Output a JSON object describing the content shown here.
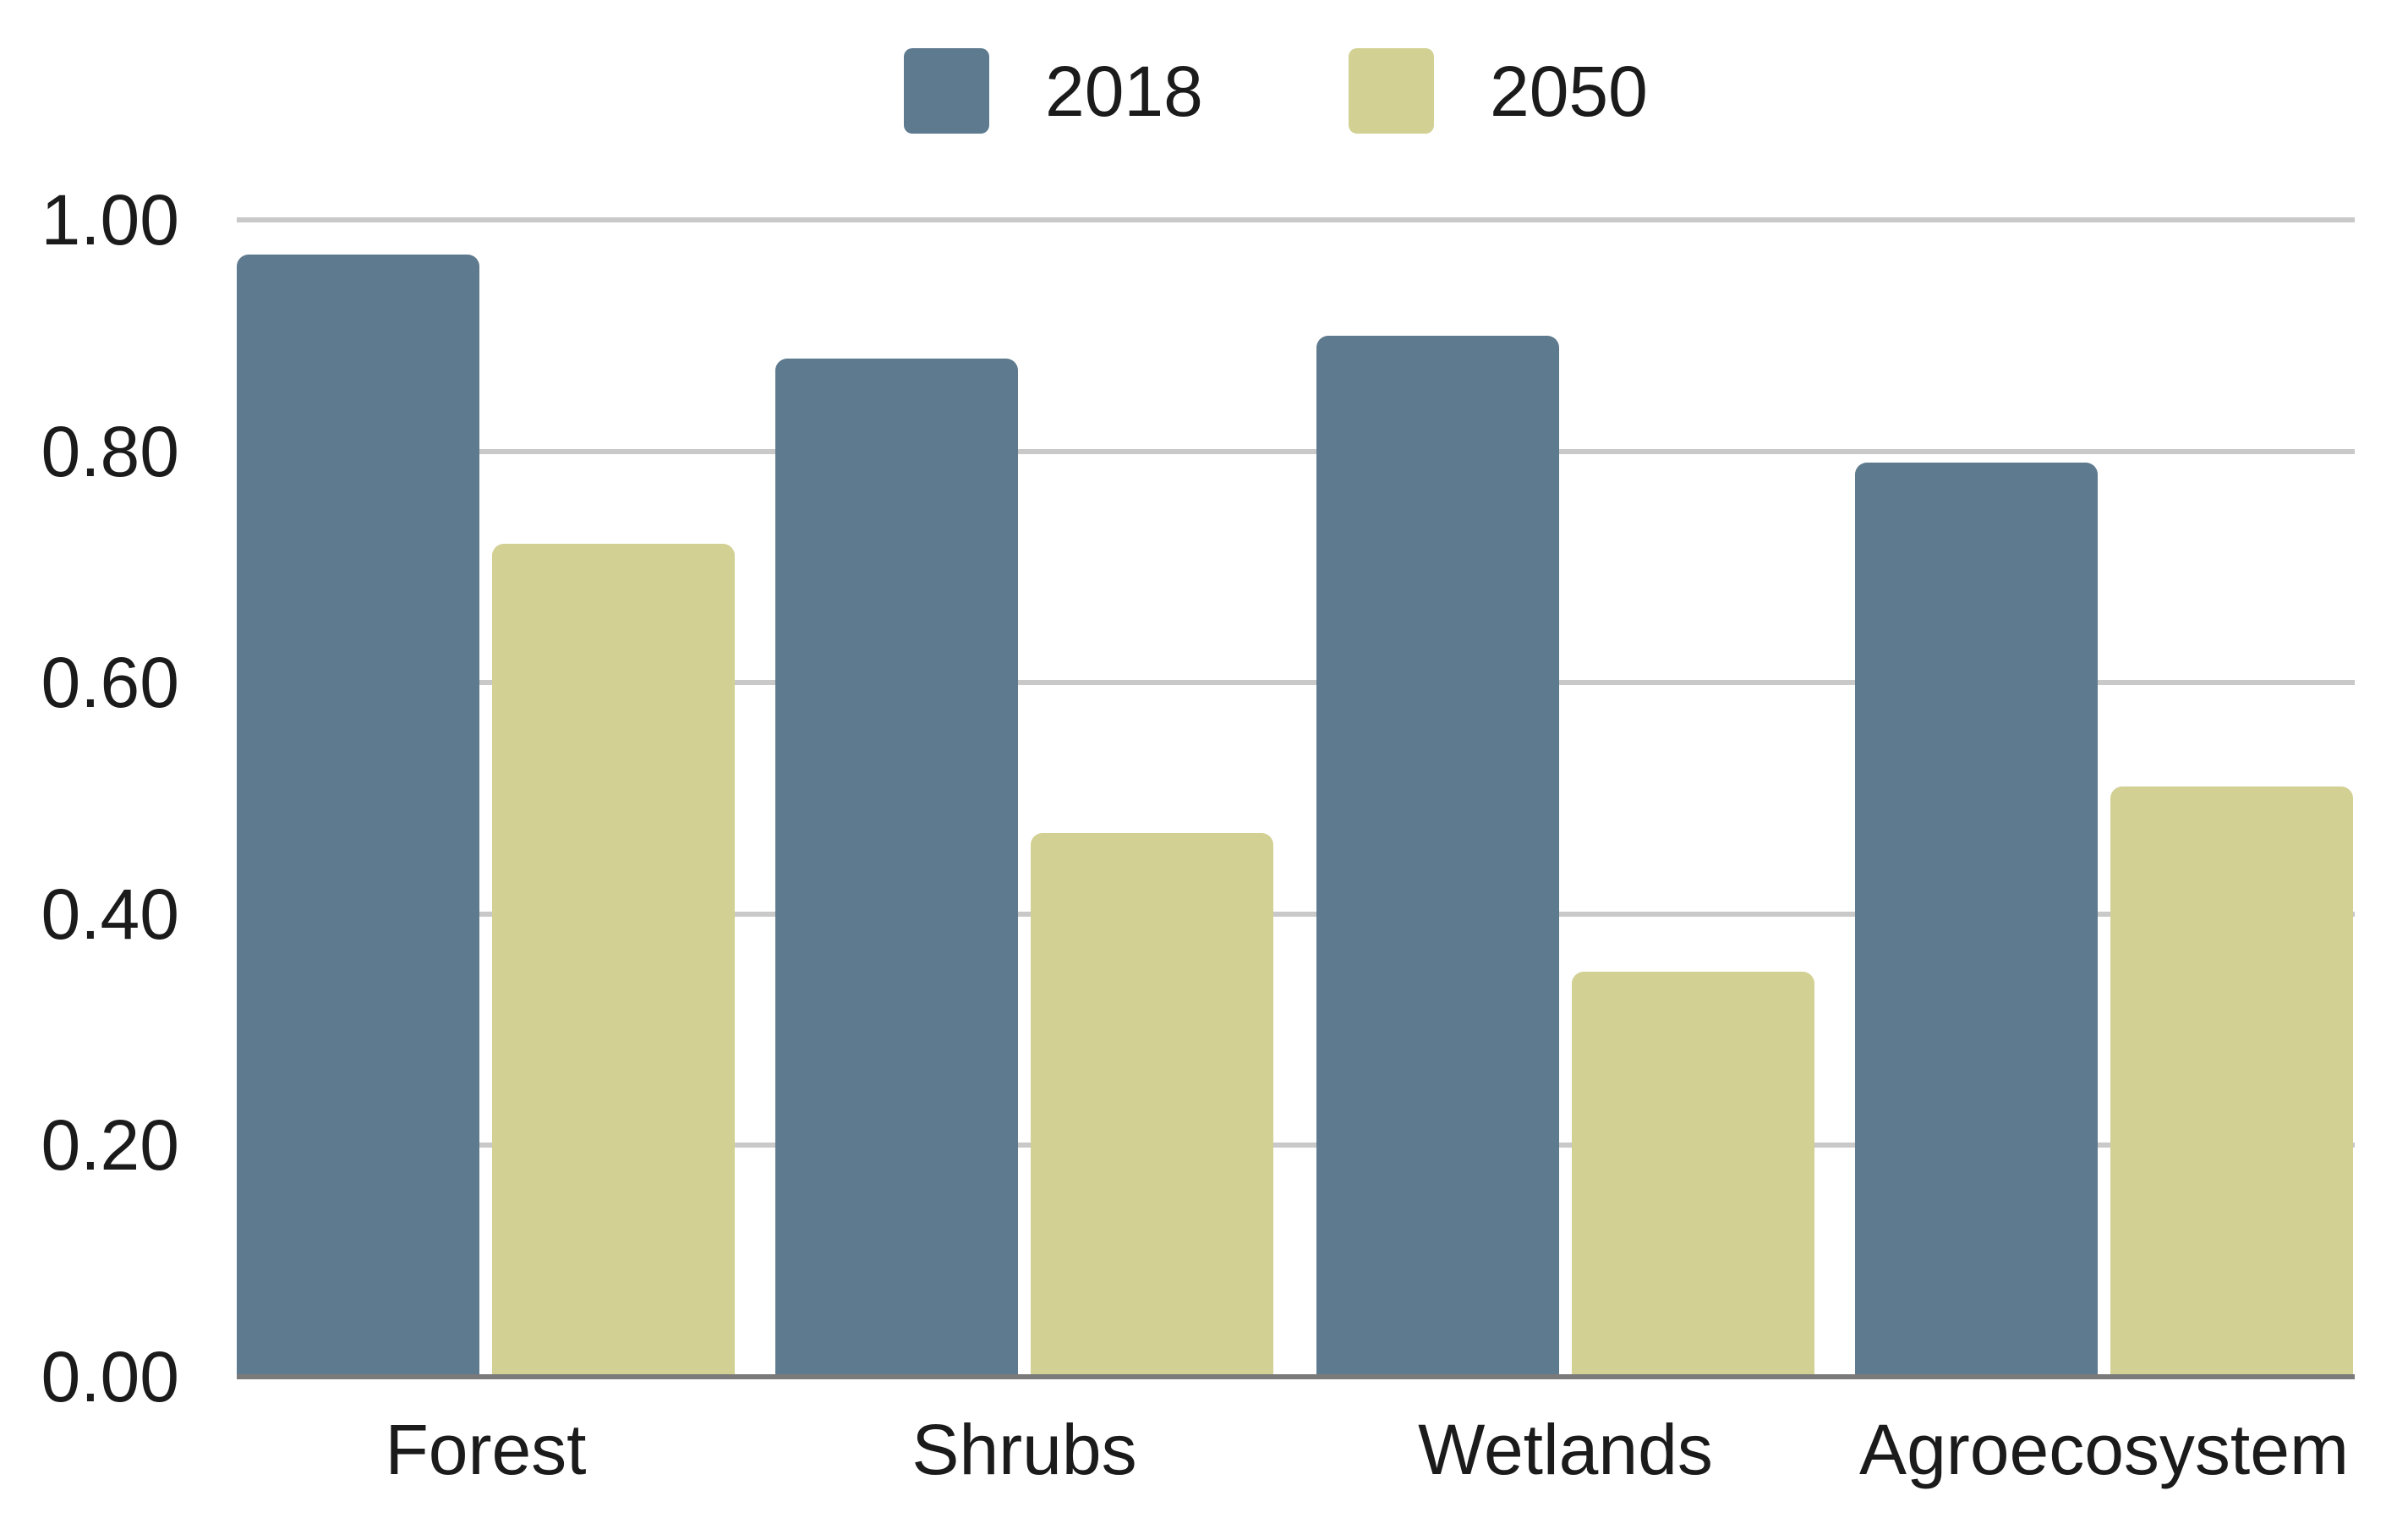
{
  "chart_data": {
    "type": "bar",
    "title": "",
    "xlabel": "",
    "ylabel": "",
    "categories": [
      "Forest",
      "Shrubs",
      "Wetlands",
      "Agroecosystem"
    ],
    "series": [
      {
        "name": "2018",
        "color": "#5e7a8e",
        "values": [
          0.97,
          0.88,
          0.9,
          0.79
        ]
      },
      {
        "name": "2050",
        "color": "#d2d092",
        "values": [
          0.72,
          0.47,
          0.35,
          0.51
        ]
      }
    ],
    "ylim": [
      0.0,
      1.0
    ],
    "yticks": [
      {
        "value": 0.0,
        "label": "0.00"
      },
      {
        "value": 0.2,
        "label": "0.20"
      },
      {
        "value": 0.4,
        "label": "0.40"
      },
      {
        "value": 0.6,
        "label": "0.60"
      },
      {
        "value": 0.8,
        "label": "0.80"
      },
      {
        "value": 1.0,
        "label": "1.00"
      }
    ],
    "grid": true,
    "legend_position": "top-center"
  },
  "colors": {
    "background": "#ffffff",
    "gridline": "#c9c9c9",
    "axis_line": "#7a7a7a",
    "text": "#1b1b1b",
    "series_2018": "#5e7a8e",
    "series_2050": "#d2d092"
  }
}
